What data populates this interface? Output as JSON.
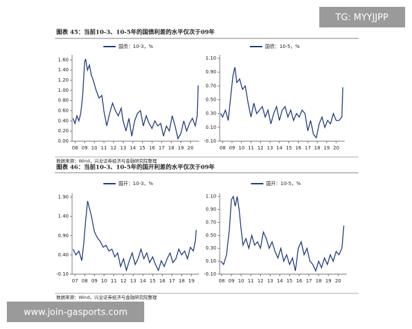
{
  "watermark_top": "TG: MYYJJPP",
  "watermark_bottom": "www.join-gasports.com",
  "figures": [
    {
      "title": "图表 45：当前10-3、10-5年的国债利差的水平仅次于09年",
      "source": "数据来源：Wind，兴业证券经济与金融研究院整理"
    },
    {
      "title": "图表 46：当前10-3、10-5年的国开利差的水平仅次于09年",
      "source": "数据来源：Wind，兴业证券经济与金融研究院整理"
    }
  ],
  "chart_data": [
    {
      "type": "line",
      "series": [
        {
          "name": "国债：10-3，%",
          "color": "#1f3a7a",
          "values": [
            0.45,
            0.35,
            0.5,
            0.4,
            0.55,
            0.9,
            1.55,
            1.62,
            1.4,
            1.5,
            1.3,
            1.2,
            1.0,
            0.85,
            0.9,
            0.6,
            0.3,
            0.55,
            0.75,
            0.6,
            0.5,
            0.65,
            0.4,
            0.2,
            0.45,
            0.1,
            0.4,
            0.55,
            0.6,
            0.3,
            0.5,
            0.35,
            0.25,
            0.4,
            0.3,
            0.35,
            0.1,
            0.3,
            0.2,
            0.5,
            0.3,
            0.05,
            0.15,
            0.4,
            0.2,
            0.35,
            0.45,
            0.3,
            0.5,
            1.1
          ]
        }
      ],
      "x": [
        7.8,
        8.0,
        8.2,
        8.4,
        8.6,
        8.8,
        9.0,
        9.1,
        9.3,
        9.5,
        9.7,
        9.9,
        10.2,
        10.5,
        10.8,
        11.0,
        11.3,
        11.6,
        11.9,
        12.2,
        12.5,
        12.8,
        13.0,
        13.3,
        13.6,
        13.9,
        14.2,
        14.5,
        14.8,
        15.1,
        15.4,
        15.7,
        16.0,
        16.3,
        16.6,
        16.9,
        17.2,
        17.5,
        17.8,
        18.1,
        18.4,
        18.7,
        19.0,
        19.3,
        19.6,
        19.9,
        20.2,
        20.5,
        20.7,
        20.8
      ],
      "xlim": [
        7.7,
        20.9
      ],
      "xticks": [
        {
          "value": 8,
          "label": "08"
        },
        {
          "value": 9,
          "label": "09"
        },
        10,
        11,
        12,
        13,
        14,
        15,
        16,
        17,
        18,
        19,
        20
      ],
      "ylim": [
        0,
        1.7
      ],
      "yticks": [
        {
          "value": 0,
          "label": "0.00"
        },
        {
          "value": 0.2,
          "label": "0.20"
        },
        {
          "value": 0.4,
          "label": "0.40"
        },
        {
          "value": 0.6,
          "label": "0.60"
        },
        {
          "value": 0.8,
          "label": "0.80"
        },
        {
          "value": 1,
          "label": "1.00"
        },
        {
          "value": 1.2,
          "label": "1.20"
        },
        {
          "value": 1.4,
          "label": "1.40"
        },
        {
          "value": 1.6,
          "label": "1.60"
        }
      ]
    },
    {
      "type": "line",
      "series": [
        {
          "name": "国债：10-5，%",
          "color": "#1f3a7a",
          "values": [
            0.3,
            0.25,
            0.35,
            0.2,
            0.6,
            0.85,
            0.97,
            0.75,
            0.8,
            0.65,
            0.7,
            0.45,
            0.25,
            0.45,
            0.3,
            0.35,
            0.4,
            0.25,
            0.35,
            0.15,
            0.3,
            0.4,
            0.2,
            0.35,
            0.4,
            0.25,
            0.35,
            0.2,
            0.3,
            0.25,
            0.35,
            0.3,
            0.05,
            0.2,
            0.0,
            -0.05,
            0.15,
            0.25,
            0.1,
            0.2,
            0.15,
            0.3,
            0.2,
            0.2,
            0.25,
            0.68
          ]
        }
      ],
      "x": [
        7.8,
        8.0,
        8.3,
        8.6,
        8.9,
        9.1,
        9.3,
        9.5,
        9.8,
        10.1,
        10.4,
        10.7,
        11.0,
        11.3,
        11.6,
        11.9,
        12.2,
        12.5,
        12.8,
        13.1,
        13.4,
        13.7,
        14.0,
        14.3,
        14.6,
        14.9,
        15.2,
        15.5,
        15.8,
        16.1,
        16.4,
        16.7,
        17.0,
        17.3,
        17.6,
        17.9,
        18.2,
        18.5,
        18.8,
        19.1,
        19.4,
        19.7,
        20.0,
        20.3,
        20.6,
        20.7
      ],
      "xlim": [
        7.7,
        20.9
      ],
      "xticks": [
        {
          "value": 8,
          "label": "08"
        },
        {
          "value": 9,
          "label": "09"
        },
        10,
        11,
        12,
        13,
        14,
        15,
        16,
        17,
        18,
        19,
        20
      ],
      "ylim": [
        -0.1,
        1.15
      ],
      "yticks": [
        {
          "value": -0.1,
          "label": "-0.10"
        },
        {
          "value": 0.1,
          "label": "0.10"
        },
        {
          "value": 0.3,
          "label": "0.30"
        },
        {
          "value": 0.5,
          "label": "0.50"
        },
        {
          "value": 0.7,
          "label": "0.70"
        },
        {
          "value": 0.9,
          "label": "0.90"
        },
        {
          "value": 1.1,
          "label": "1.10"
        }
      ]
    },
    {
      "type": "line",
      "series": [
        {
          "name": "国开：10-3，%",
          "color": "#1f3a7a",
          "values": [
            0.55,
            0.4,
            0.5,
            0.25,
            0.7,
            1.3,
            1.8,
            1.6,
            1.4,
            1.0,
            0.85,
            0.75,
            0.6,
            0.65,
            0.5,
            0.55,
            0.35,
            0.45,
            0.1,
            0.3,
            0.0,
            0.25,
            0.45,
            0.15,
            0.3,
            0.55,
            0.3,
            0.45,
            0.2,
            0.35,
            0.15,
            0.0,
            0.25,
            0.1,
            0.3,
            0.45,
            0.2,
            0.3,
            0.55,
            0.4,
            0.5,
            0.3,
            0.6,
            0.5,
            0.75,
            1.05
          ]
        }
      ],
      "x": [
        6.8,
        7.1,
        7.4,
        7.7,
        7.9,
        8.1,
        8.3,
        8.5,
        8.7,
        9.0,
        9.3,
        9.6,
        9.9,
        10.2,
        10.5,
        10.8,
        11.1,
        11.4,
        11.7,
        12.0,
        12.3,
        12.6,
        12.9,
        13.2,
        13.5,
        13.8,
        14.1,
        14.4,
        14.7,
        15.0,
        15.3,
        15.6,
        15.9,
        16.2,
        16.5,
        16.8,
        17.1,
        17.4,
        17.7,
        18.0,
        18.3,
        18.6,
        18.9,
        19.2,
        19.4,
        19.5
      ],
      "xlim": [
        6.7,
        19.8
      ],
      "xticks": [
        {
          "value": 7,
          "label": "07"
        },
        {
          "value": 8,
          "label": "08"
        },
        {
          "value": 9,
          "label": "09"
        },
        10,
        11,
        12,
        13,
        14,
        15,
        16,
        17,
        18,
        19
      ],
      "ylim": [
        -0.1,
        2.0
      ],
      "yticks": [
        {
          "value": -0.1,
          "label": "-0.10"
        },
        {
          "value": 0.4,
          "label": "0.40"
        },
        {
          "value": 0.9,
          "label": "0.90"
        },
        {
          "value": 1.4,
          "label": "1.40"
        },
        {
          "value": 1.9,
          "label": "1.90"
        }
      ]
    },
    {
      "type": "line",
      "series": [
        {
          "name": "国开：10-5，%",
          "color": "#1f3a7a",
          "values": [
            0.1,
            0.05,
            0.2,
            0.6,
            1.05,
            1.1,
            0.95,
            1.1,
            0.9,
            0.6,
            0.35,
            0.45,
            0.3,
            0.5,
            0.35,
            0.4,
            0.3,
            0.55,
            0.45,
            0.3,
            0.4,
            0.25,
            0.15,
            0.3,
            0.1,
            0.2,
            0.05,
            0.15,
            -0.05,
            0.3,
            0.4,
            0.2,
            0.3,
            0.1,
            0.05,
            -0.05,
            0.1,
            0.0,
            0.15,
            0.05,
            0.2,
            0.1,
            0.25,
            0.2,
            0.3,
            0.65
          ]
        }
      ],
      "x": [
        7.9,
        8.2,
        8.5,
        8.8,
        9.0,
        9.2,
        9.4,
        9.6,
        9.8,
        10.0,
        10.2,
        10.5,
        10.8,
        11.1,
        11.4,
        11.7,
        12.0,
        12.3,
        12.6,
        12.9,
        13.2,
        13.5,
        13.8,
        14.1,
        14.4,
        14.7,
        15.0,
        15.3,
        15.6,
        15.9,
        16.2,
        16.5,
        16.8,
        17.1,
        17.4,
        17.7,
        18.0,
        18.3,
        18.6,
        18.9,
        19.2,
        19.5,
        19.8,
        20.1,
        20.4,
        20.6
      ],
      "xlim": [
        7.8,
        20.9
      ],
      "xticks": [
        {
          "value": 8,
          "label": "08"
        },
        {
          "value": 9,
          "label": "09"
        },
        10,
        11,
        12,
        13,
        14,
        15,
        16,
        17,
        18,
        19,
        20
      ],
      "ylim": [
        -0.1,
        1.15
      ],
      "yticks": [
        {
          "value": -0.1,
          "label": "-0.10"
        },
        {
          "value": 0.1,
          "label": "0.10"
        },
        {
          "value": 0.3,
          "label": "0.30"
        },
        {
          "value": 0.5,
          "label": "0.50"
        },
        {
          "value": 0.7,
          "label": "0.70"
        },
        {
          "value": 0.9,
          "label": "0.90"
        },
        {
          "value": 1.1,
          "label": "1.10"
        }
      ]
    }
  ]
}
